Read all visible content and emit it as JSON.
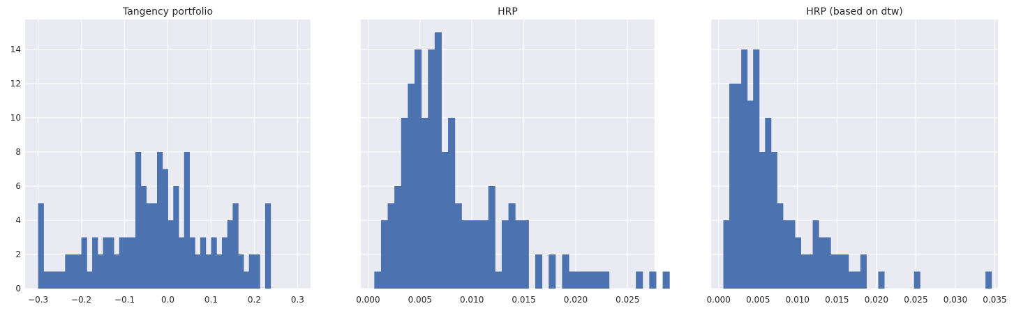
{
  "chart_data": [
    {
      "type": "bar",
      "title": "Tangency portfolio",
      "xlabel": "",
      "ylabel": "",
      "xlim": [
        -0.33,
        0.33
      ],
      "ylim": [
        0,
        15.75
      ],
      "bin_start": -0.3,
      "bin_width": 0.0125,
      "values": [
        5,
        1,
        1,
        1,
        1,
        2,
        2,
        2,
        3,
        1,
        3,
        2,
        3,
        3,
        2,
        3,
        3,
        3,
        8,
        6,
        5,
        5,
        8,
        7,
        4,
        6,
        3,
        8,
        3,
        2,
        3,
        2,
        3,
        2,
        3,
        4,
        5,
        2,
        1,
        2,
        2,
        0,
        5
      ],
      "xticks": [
        -0.3,
        -0.2,
        -0.1,
        0.0,
        0.1,
        0.2,
        0.3
      ],
      "xtick_labels": [
        "−0.3",
        "−0.2",
        "−0.1",
        "0.0",
        "0.1",
        "0.2",
        "0.3"
      ],
      "yticks": [
        0,
        2,
        4,
        6,
        8,
        10,
        12,
        14
      ],
      "ytick_labels": [
        "0",
        "2",
        "4",
        "6",
        "8",
        "10",
        "12",
        "14"
      ],
      "color": "#4c72b0",
      "grid": true,
      "background": "#eaeaf2"
    },
    {
      "type": "bar",
      "title": "HRP",
      "xlabel": "",
      "ylabel": "",
      "xlim": [
        -0.0007,
        0.0276
      ],
      "ylim": [
        0,
        15.75
      ],
      "bin_start": 0.0006,
      "bin_width": 0.000646,
      "values": [
        1,
        4,
        5,
        6,
        10,
        12,
        14,
        10,
        14,
        15,
        8,
        10,
        5,
        4,
        4,
        4,
        4,
        6,
        1,
        4,
        5,
        4,
        4,
        0,
        2,
        0,
        2,
        0,
        2,
        1,
        1,
        1,
        1,
        1,
        1,
        0,
        0,
        0,
        0,
        1,
        0,
        1,
        0,
        1
      ],
      "xticks": [
        0.0,
        0.005,
        0.01,
        0.015,
        0.02,
        0.025
      ],
      "xtick_labels": [
        "0.000",
        "0.005",
        "0.010",
        "0.015",
        "0.020",
        "0.025"
      ],
      "yticks": [
        0,
        2,
        4,
        6,
        8,
        10,
        12,
        14
      ],
      "ytick_labels": [],
      "color": "#4c72b0",
      "grid": true,
      "background": "#eaeaf2"
    },
    {
      "type": "bar",
      "title": "HRP (based on dtw)",
      "xlabel": "",
      "ylabel": "",
      "xlim": [
        -0.00095,
        0.0354
      ],
      "ylim": [
        0,
        15.75
      ],
      "bin_start": 0.0006,
      "bin_width": 0.000755,
      "values": [
        4,
        12,
        12,
        14,
        11,
        14,
        8,
        10,
        8,
        5,
        4,
        4,
        3,
        2,
        2,
        4,
        3,
        3,
        2,
        2,
        2,
        1,
        1,
        2,
        0,
        0,
        1,
        0,
        0,
        0,
        0,
        0,
        1,
        0,
        0,
        0,
        0,
        0,
        0,
        0,
        0,
        0,
        0,
        0,
        1
      ],
      "xticks": [
        0.0,
        0.005,
        0.01,
        0.015,
        0.02,
        0.025,
        0.03,
        0.035
      ],
      "xtick_labels": [
        "0.000",
        "0.005",
        "0.010",
        "0.015",
        "0.020",
        "0.025",
        "0.030",
        "0.035"
      ],
      "yticks": [
        0,
        2,
        4,
        6,
        8,
        10,
        12,
        14
      ],
      "ytick_labels": [],
      "color": "#4c72b0",
      "grid": true,
      "background": "#eaeaf2"
    }
  ]
}
